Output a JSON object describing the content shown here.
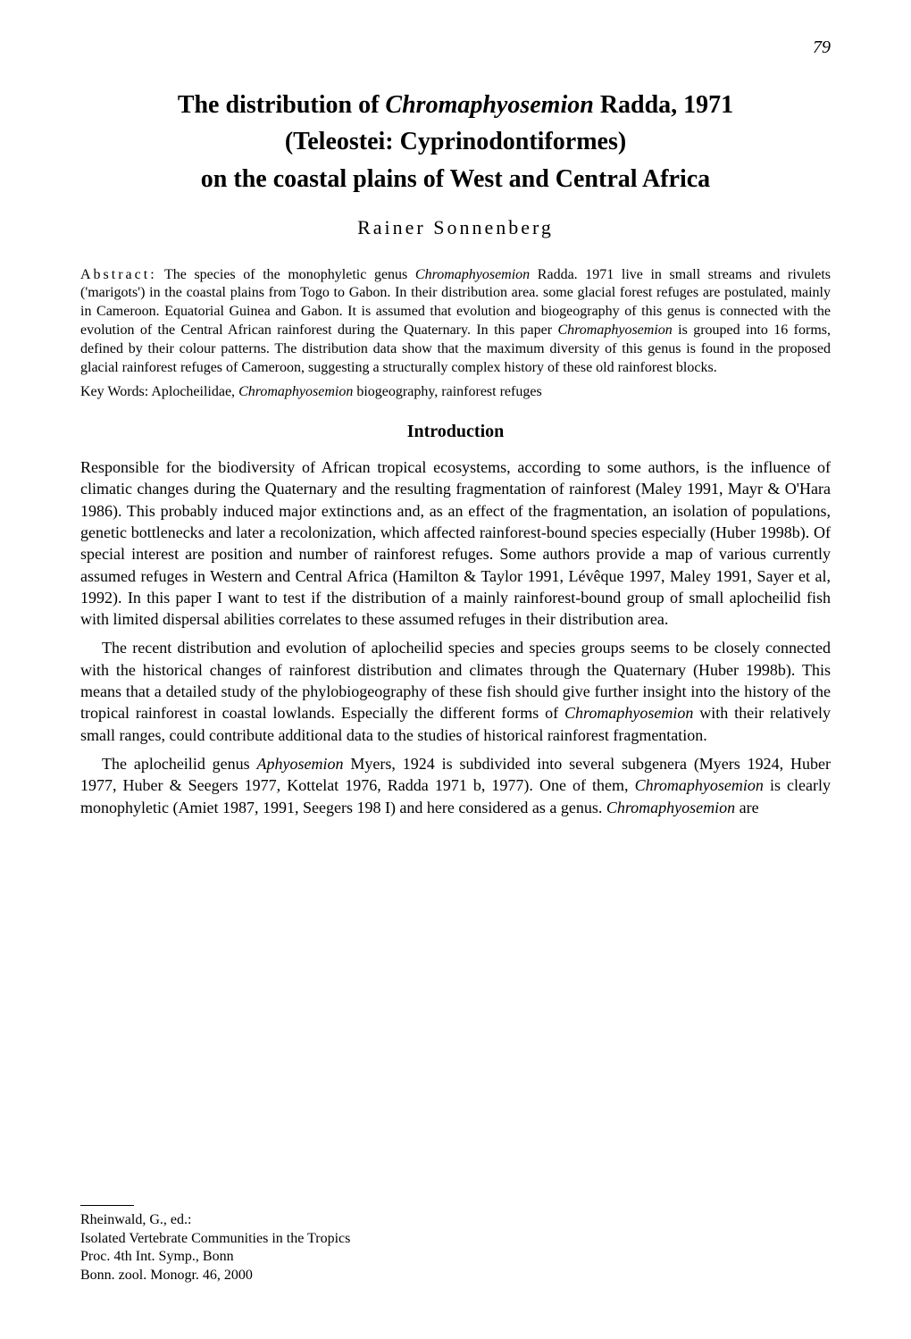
{
  "page_number": "79",
  "title_line1": "The distribution of ",
  "title_italic1": "Chromaphyosemion",
  "title_line1b": " Radda, 1971",
  "title_line2": "(Teleostei: Cyprinodontiformes)",
  "title_line3": "on the coastal plains of West and Central Africa",
  "author": "Rainer Sonnenberg",
  "abstract_label": "Abstract:",
  "abstract_text_1": " The species of the monophyletic genus ",
  "abstract_italic_1": "Chromaphyosemion",
  "abstract_text_2": " Radda. 1971 live in small streams and rivulets ('marigots') in the coastal plains from Togo to Gabon. In their distribution area. some glacial forest refuges are postulated, mainly in Cameroon. Equatorial Guinea and Gabon. It is assumed that evolution and biogeography of this genus is connected with the evolution of the Central African rainforest during the Quaternary. In this paper ",
  "abstract_italic_2": "Chromaphyosemion",
  "abstract_text_3": " is grouped into 16 forms, defined by their colour patterns. The distribution data show that the maximum diversity of this genus is found in the proposed glacial rainforest refuges of Cameroon, suggesting a structurally complex history of these old rainforest blocks.",
  "keywords_label": "Key Words: ",
  "keywords_text_1": "Aplocheilidae, ",
  "keywords_italic": "Chromaphyosemion",
  "keywords_text_2": " biogeography, rainforest refuges",
  "section_intro": "Introduction",
  "para1_a": "Responsible for the biodiversity of African tropical ecosystems, according to some authors, is the influence of climatic changes during the Quaternary and the resulting fragmentation of rainforest (Maley 1991, Mayr & O'Hara 1986). This probably induced major extinctions and, as an effect of the fragmentation, an isolation of populations, genetic bottlenecks and later a recolonization, which affected rainforest-bound species especially (Huber 1998b). Of special interest are position and number of rainforest refuges. Some authors provide a map of various currently assumed refuges in Western and Central Africa (Hamilton & Taylor 1991, Lévêque 1997, Maley 1991, Sayer et al, 1992). In this paper I want to test if the distribution of a mainly rainforest-bound group of small aplocheilid fish with limited dispersal abilities correlates to these assumed refuges in their distribution area.",
  "para2_a": "The recent distribution and evolution of aplocheilid species and species groups seems to be closely connected with the historical changes of rainforest distribution and climates through the Quaternary (Huber 1998b). This means that a detailed study of the phylobiogeography of these fish should give further insight into the history of the tropical rainforest in coastal lowlands. Especially the different forms of ",
  "para2_italic": "Chromaphyosemion",
  "para2_b": " with their relatively small ranges, could contribute additional data to the studies of historical rainforest fragmentation.",
  "para3_a": "The aplocheilid genus ",
  "para3_italic1": "Aphyosemion",
  "para3_b": " Myers, 1924 is subdivided into several subgenera (Myers 1924, Huber 1977, Huber & Seegers 1977, Kottelat 1976, Radda 1971 b, 1977). One of them, ",
  "para3_italic2": "Chromaphyosemion",
  "para3_c": " is clearly monophyletic (Amiet 1987, 1991, Seegers 198 I) and here considered as a genus. ",
  "para3_italic3": "Chromaphyosemion",
  "para3_d": " are",
  "footer_line1": "Rheinwald, G., ed.:",
  "footer_line2": "Isolated Vertebrate Communities in the Tropics",
  "footer_line3": "Proc. 4th Int. Symp., Bonn",
  "footer_line4": "Bonn. zool. Monogr. 46, 2000"
}
